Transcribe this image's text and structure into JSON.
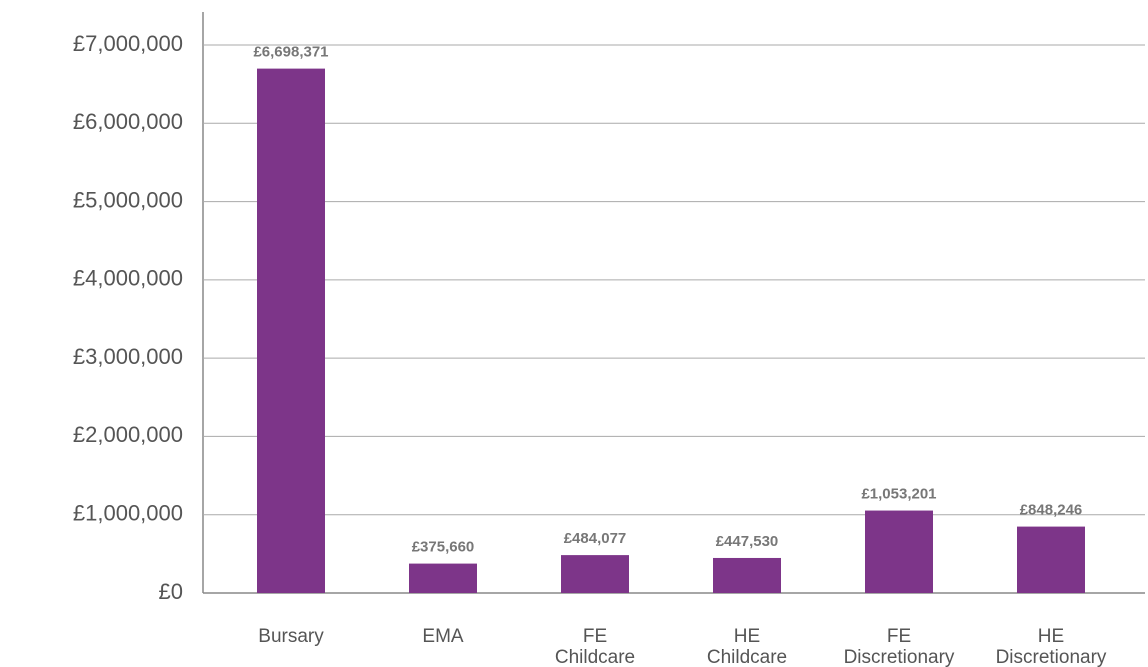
{
  "chart_data": {
    "type": "bar",
    "categories": [
      [
        "Bursary"
      ],
      [
        "EMA"
      ],
      [
        "FE",
        "Childcare"
      ],
      [
        "HE",
        "Childcare"
      ],
      [
        "FE",
        "Discretionary"
      ],
      [
        "HE",
        "Discretionary"
      ]
    ],
    "values": [
      6698371,
      375660,
      484077,
      447530,
      1053201,
      848246
    ],
    "value_labels": [
      "£6,698,371",
      "£375,660",
      "£484,077",
      "£447,530",
      "£1,053,201",
      "£848,246"
    ],
    "color": "#7d3589",
    "ylim": [
      0,
      7000000
    ],
    "yticks": [
      {
        "value": 0,
        "label": "£0"
      },
      {
        "value": 1000000,
        "label": "£1,000,000"
      },
      {
        "value": 2000000,
        "label": "£2,000,000"
      },
      {
        "value": 3000000,
        "label": "£3,000,000"
      },
      {
        "value": 4000000,
        "label": "£4,000,000"
      },
      {
        "value": 5000000,
        "label": "£5,000,000"
      },
      {
        "value": 6000000,
        "label": "£6,000,000"
      },
      {
        "value": 7000000,
        "label": "£7,000,000"
      }
    ],
    "grid": true
  }
}
